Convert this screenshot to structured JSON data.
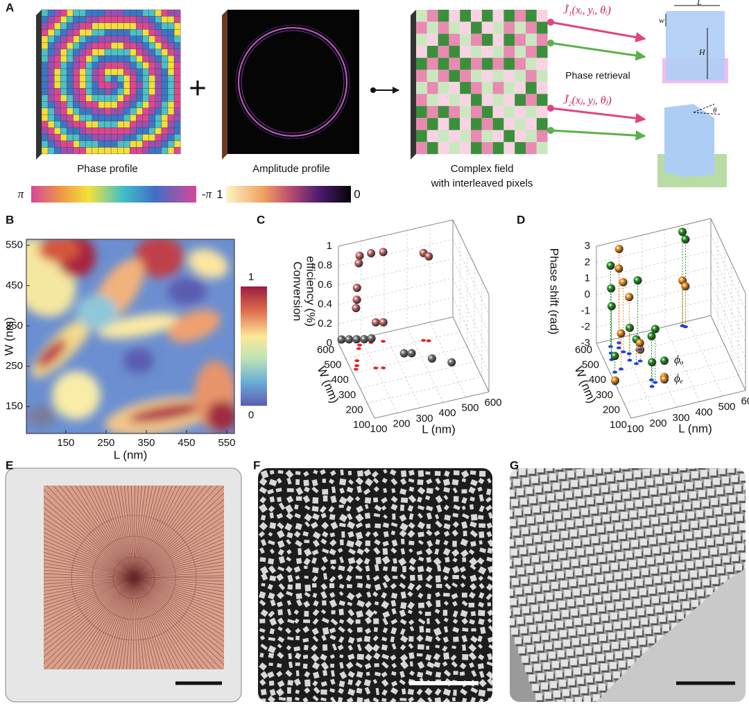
{
  "panel_labels": [
    "A",
    "B",
    "C",
    "D",
    "E",
    "F",
    "G"
  ],
  "panel_a": {
    "phase_label": "Phase profile",
    "amplitude_label": "Amplitude profile",
    "complex_label": [
      "Complex field",
      "with interleaved pixels"
    ],
    "retrieval_label": "Phase retrieval",
    "j1": "J̃₁(xᵢ, yᵢ, θᵢ)",
    "j2": "J̃₂(xⱼ, yⱼ, θⱼ)",
    "phase_colorbar": [
      "π",
      "-π"
    ],
    "amplitude_colorbar": {
      "ticks": [
        1,
        0
      ],
      "lim": [
        0,
        1
      ]
    },
    "dims": [
      "L",
      "w",
      "H",
      "θ"
    ]
  },
  "chart_data": [
    {
      "type": "heatmap",
      "x_label": "L (nm)",
      "y_label": "W (nm)",
      "xlim": [
        52,
        569
      ],
      "ylim": [
        83,
        565
      ],
      "xticks": [
        150,
        250,
        350,
        450,
        550
      ],
      "yticks": [
        150,
        250,
        350,
        450,
        550
      ],
      "colorbar": {
        "lim": [
          0,
          1
        ],
        "ticks": [
          1,
          0
        ]
      }
    },
    {
      "type": "scatter3d",
      "x_label": "L (nm)",
      "y_label": "W (nm)",
      "z_label": [
        "Conversion",
        "efficiency (%)"
      ],
      "xlim": [
        100,
        600
      ],
      "ylim": [
        100,
        600
      ],
      "zlim": [
        0,
        1
      ],
      "xticks": [
        100,
        200,
        300,
        400,
        500,
        600
      ],
      "yticks": [
        100,
        200,
        300,
        400,
        500,
        600
      ],
      "zticks": [
        0,
        0.2,
        0.4,
        0.6,
        0.8,
        1
      ],
      "series": [
        {
          "color": "#c4676b",
          "shadow": "#e82020",
          "x": [
            180,
            230,
            280,
            170,
            140,
            130,
            120,
            200,
            230,
            440,
            460
          ],
          "y": [
            560,
            560,
            550,
            540,
            470,
            440,
            420,
            400,
            390,
            500,
            490
          ],
          "values": [
            0.92,
            0.92,
            0.92,
            0.88,
            0.75,
            0.68,
            0.63,
            0.47,
            0.47,
            0.9,
            0.87
          ]
        },
        {
          "color": "#6e6e6e",
          "x": [
            110,
            140,
            170,
            200,
            230,
            330,
            360,
            430,
            500
          ],
          "y": [
            590,
            580,
            570,
            560,
            555,
            420,
            410,
            350,
            300
          ],
          "values": [
            0.05,
            0.05,
            0.05,
            0.05,
            0.05,
            0.05,
            0.05,
            0.05,
            0.05
          ]
        }
      ]
    },
    {
      "type": "scatter3d",
      "x_label": "L (nm)",
      "y_label": "W (nm)",
      "z_label": [
        "Phase shift (rad)"
      ],
      "xlim": [
        100,
        600
      ],
      "ylim": [
        100,
        600
      ],
      "zlim": [
        -3,
        3
      ],
      "xticks": [
        100,
        200,
        300,
        400,
        500,
        600
      ],
      "yticks": [
        100,
        200,
        300,
        400,
        500,
        600
      ],
      "zticks": [
        -3,
        -2,
        -1,
        0,
        1,
        2,
        3
      ],
      "legend": "right",
      "series": [
        {
          "name": "ϕₒ",
          "color": "#1f8f1f",
          "shadow": "#1f3fe0",
          "x": [
            150,
            140,
            130,
            200,
            220,
            250,
            120,
            250,
            260,
            470,
            480,
            240
          ],
          "y": [
            560,
            520,
            480,
            450,
            420,
            500,
            400,
            300,
            280,
            580,
            570,
            260
          ],
          "values": [
            2.0,
            1.0,
            0.3,
            -1.0,
            -1.5,
            1.3,
            -2.0,
            -0.3,
            0.3,
            2.8,
            2.4,
            -1.5
          ]
        },
        {
          "name": "ϕₑ",
          "color": "#e8891a",
          "shadow": "#1f3fe0",
          "x": [
            190,
            180,
            190,
            210,
            150,
            240,
            100,
            260,
            300,
            470,
            480
          ],
          "y": [
            570,
            540,
            510,
            490,
            410,
            430,
            330,
            500,
            280,
            580,
            570
          ],
          "values": [
            2.8,
            1.9,
            1.3,
            0.5,
            -0.8,
            -2.3,
            -2.8,
            -2.6,
            -2.8,
            -0.2,
            -0.5
          ]
        }
      ]
    }
  ]
}
